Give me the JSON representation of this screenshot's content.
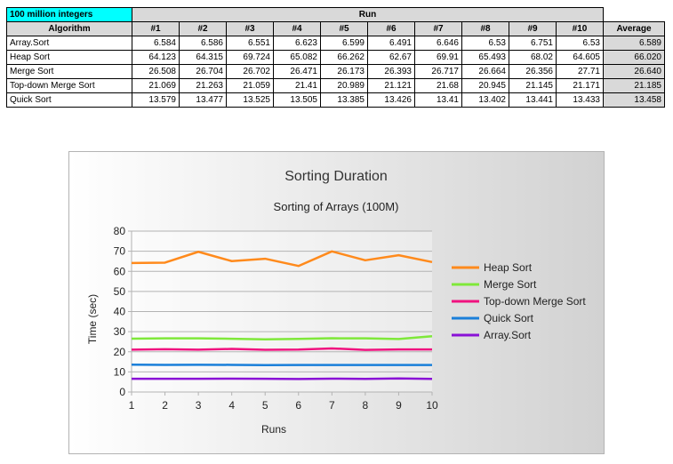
{
  "table": {
    "corner_label": "100 million integers",
    "run_header": "Run",
    "algorithm_header": "Algorithm",
    "run_columns": [
      "#1",
      "#2",
      "#3",
      "#4",
      "#5",
      "#6",
      "#7",
      "#8",
      "#9",
      "#10"
    ],
    "average_header": "Average",
    "rows": [
      {
        "name": "Array.Sort",
        "values": [
          "6.584",
          "6.586",
          "6.551",
          "6.623",
          "6.599",
          "6.491",
          "6.646",
          "6.53",
          "6.751",
          "6.53"
        ],
        "average": "6.589"
      },
      {
        "name": "Heap Sort",
        "values": [
          "64.123",
          "64.315",
          "69.724",
          "65.082",
          "66.262",
          "62.67",
          "69.91",
          "65.493",
          "68.02",
          "64.605"
        ],
        "average": "66.020"
      },
      {
        "name": "Merge Sort",
        "values": [
          "26.508",
          "26.704",
          "26.702",
          "26.471",
          "26.173",
          "26.393",
          "26.717",
          "26.664",
          "26.356",
          "27.71"
        ],
        "average": "26.640"
      },
      {
        "name": "Top-down Merge Sort",
        "values": [
          "21.069",
          "21.263",
          "21.059",
          "21.41",
          "20.989",
          "21.121",
          "21.68",
          "20.945",
          "21.145",
          "21.171"
        ],
        "average": "21.185"
      },
      {
        "name": "Quick Sort",
        "values": [
          "13.579",
          "13.477",
          "13.525",
          "13.505",
          "13.385",
          "13.426",
          "13.41",
          "13.402",
          "13.441",
          "13.433"
        ],
        "average": "13.458"
      }
    ]
  },
  "chart_data": {
    "type": "line",
    "title": "Sorting Duration",
    "subtitle": "Sorting of Arrays (100M)",
    "xlabel": "Runs",
    "ylabel": "Time (sec)",
    "x": [
      1,
      2,
      3,
      4,
      5,
      6,
      7,
      8,
      9,
      10
    ],
    "ylim": [
      0,
      80
    ],
    "yticks": [
      0,
      10,
      20,
      30,
      40,
      50,
      60,
      70,
      80
    ],
    "grid": true,
    "legend_position": "right",
    "series": [
      {
        "name": "Heap Sort",
        "color": "#ff8a1c",
        "values": [
          64.123,
          64.315,
          69.724,
          65.082,
          66.262,
          62.67,
          69.91,
          65.493,
          68.02,
          64.605
        ]
      },
      {
        "name": "Merge Sort",
        "color": "#7fe83a",
        "values": [
          26.508,
          26.704,
          26.702,
          26.471,
          26.173,
          26.393,
          26.717,
          26.664,
          26.356,
          27.71
        ]
      },
      {
        "name": "Top-down Merge Sort",
        "color": "#f0127f",
        "values": [
          21.069,
          21.263,
          21.059,
          21.41,
          20.989,
          21.121,
          21.68,
          20.945,
          21.145,
          21.171
        ]
      },
      {
        "name": "Quick Sort",
        "color": "#1a7fd9",
        "values": [
          13.579,
          13.477,
          13.525,
          13.505,
          13.385,
          13.426,
          13.41,
          13.402,
          13.441,
          13.433
        ]
      },
      {
        "name": "Array.Sort",
        "color": "#8a12d6",
        "values": [
          6.584,
          6.586,
          6.551,
          6.623,
          6.599,
          6.491,
          6.646,
          6.53,
          6.751,
          6.53
        ]
      }
    ]
  }
}
